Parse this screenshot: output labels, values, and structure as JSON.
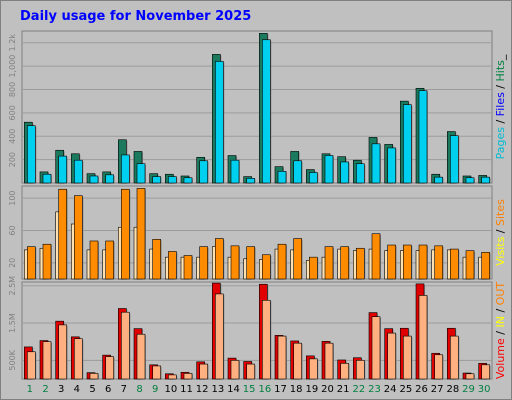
{
  "chart_data": {
    "type": "bar",
    "title": "Daily usage for November 2025",
    "categories": [
      "1",
      "2",
      "3",
      "4",
      "5",
      "6",
      "7",
      "8",
      "9",
      "10",
      "11",
      "12",
      "13",
      "14",
      "15",
      "16",
      "17",
      "18",
      "19",
      "20",
      "21",
      "22",
      "23",
      "24",
      "25",
      "26",
      "27",
      "28",
      "29",
      "30"
    ],
    "weekend_days": [
      "1",
      "2",
      "8",
      "9",
      "15",
      "16",
      "22",
      "23",
      "29",
      "30"
    ],
    "colors": {
      "title": "#0000ff",
      "weekday_label": "#000000",
      "weekend_label": "#008040",
      "background": "#c0c0c0"
    },
    "panels": [
      {
        "id": "hits",
        "ylim": [
          0,
          1300
        ],
        "ticks": [
          200,
          400,
          600,
          800,
          1000,
          1200
        ],
        "tick_labels": [
          "200",
          "400",
          "600",
          "800",
          "1,000",
          "1.2k"
        ],
        "side_label": [
          {
            "text": "Pages",
            "color": "#00bcd4"
          },
          {
            "text": " / ",
            "color": "#000000"
          },
          {
            "text": "Files",
            "color": "#0000ff"
          },
          {
            "text": " / ",
            "color": "#000000"
          },
          {
            "text": "Hits",
            "color": "#008040"
          },
          {
            "text": "_",
            "color": "#000000"
          }
        ],
        "series": [
          {
            "color": "#1b7a5e",
            "values": [
              520,
              95,
              280,
              250,
              80,
              95,
              370,
              270,
              80,
              75,
              60,
              220,
              1100,
              235,
              55,
              1280,
              140,
              270,
              115,
              250,
              225,
              195,
              390,
              330,
              700,
              810,
              75,
              440,
              60,
              65
            ]
          },
          {
            "color": "#00d0f0",
            "values": [
              490,
              75,
              230,
              195,
              60,
              70,
              240,
              165,
              55,
              55,
              45,
              190,
              1040,
              195,
              40,
              1225,
              100,
              190,
              90,
              235,
              180,
              165,
              335,
              300,
              670,
              790,
              50,
              405,
              45,
              50
            ]
          }
        ]
      },
      {
        "id": "visits",
        "ylim": [
          0,
          115
        ],
        "ticks": [
          20,
          60,
          100
        ],
        "tick_labels": [
          "20",
          "60",
          "100"
        ],
        "side_label": [
          {
            "text": "Visits",
            "color": "#ffff00"
          },
          {
            "text": " / ",
            "color": "#000000"
          },
          {
            "text": "Sites",
            "color": "#ff8000"
          }
        ],
        "series": [
          {
            "color": "#ffe0b0",
            "values": [
              36,
              38,
              83,
              68,
              36,
              36,
              64,
              64,
              37,
              27,
              27,
              27,
              40,
              27,
              25,
              24,
              37,
              36,
              23,
              27,
              37,
              35,
              37,
              35,
              35,
              35,
              36,
              36,
              27,
              27
            ]
          },
          {
            "color": "#ff8c00",
            "values": [
              40,
              43,
              111,
              103,
              47,
              47,
              111,
              112,
              49,
              34,
              29,
              40,
              50,
              41,
              40,
              30,
              43,
              50,
              27,
              40,
              40,
              38,
              56,
              42,
              42,
              42,
              41,
              37,
              35,
              33
            ]
          }
        ]
      },
      {
        "id": "volume",
        "ylim": [
          0,
          2600000
        ],
        "ticks": [
          500000,
          1500000,
          2500000
        ],
        "tick_labels": [
          "500K",
          "1.5M",
          "2.5M"
        ],
        "side_label": [
          {
            "text": "Volume",
            "color": "#ff0000"
          },
          {
            "text": " / ",
            "color": "#000000"
          },
          {
            "text": "IN",
            "color": "#ffff00"
          },
          {
            "text": " / ",
            "color": "#000000"
          },
          {
            "text": "OUT",
            "color": "#ff8000"
          }
        ],
        "series": [
          {
            "color": "#e00000",
            "values": [
              860,
              1030,
              1550,
              1130,
              170,
              640,
              1890,
              1350,
              380,
              140,
              180,
              460,
              2570,
              560,
              470,
              2540,
              1170,
              1020,
              620,
              1010,
              510,
              570,
              1780,
              1350,
              1360,
              2550,
              690,
              1360,
              160,
              420
            ]
          },
          {
            "color": "#ffb080",
            "values": [
              730,
              1000,
              1450,
              1080,
              150,
              600,
              1790,
              1200,
              350,
              110,
              150,
              400,
              2280,
              500,
              400,
              2110,
              1150,
              960,
              540,
              960,
              420,
              500,
              1670,
              1230,
              1150,
              2240,
              650,
              1150,
              140,
              380
            ]
          }
        ]
      }
    ]
  }
}
